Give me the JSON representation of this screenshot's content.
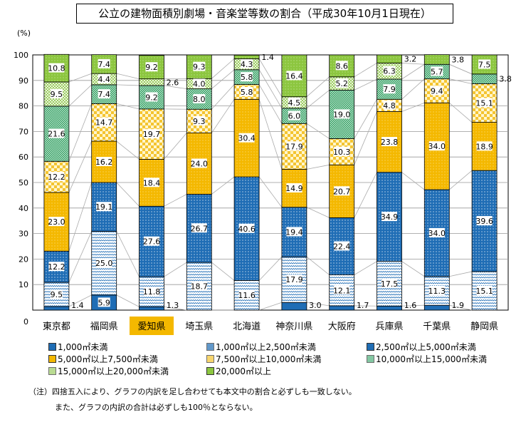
{
  "chart_data": {
    "type": "bar",
    "stacked": true,
    "title": "公立の建物面積別劇場・音楽堂等数の割合（平成30年10月1日現在）",
    "ylabel": "(%)",
    "ylim": [
      0,
      100
    ],
    "yticks": [
      0,
      10,
      20,
      30,
      40,
      50,
      60,
      70,
      80,
      90,
      100
    ],
    "grid": true,
    "legend_position": "bottom",
    "highlighted_category": "愛知県",
    "categories": [
      "東京都",
      "福岡県",
      "愛知県",
      "埼玉県",
      "北海道",
      "神奈川県",
      "大阪府",
      "兵庫県",
      "千葉県",
      "静岡県"
    ],
    "series": [
      {
        "name": "1,000㎡未満",
        "color": "#1f6db5",
        "pattern": "solid",
        "values": [
          1.4,
          5.9,
          1.3,
          0,
          0,
          3.0,
          1.7,
          1.6,
          1.9,
          0
        ]
      },
      {
        "name": "1,000㎡以上2,500㎡未満",
        "color": "#1f6db5",
        "pattern": "wave",
        "values": [
          9.5,
          25.0,
          11.8,
          18.7,
          11.6,
          17.9,
          12.1,
          17.5,
          11.3,
          15.1
        ]
      },
      {
        "name": "2,500㎡以上5,000㎡未満",
        "color": "#1f6db5",
        "pattern": "dots",
        "values": [
          12.2,
          19.1,
          27.6,
          26.7,
          40.6,
          19.4,
          22.4,
          34.9,
          34.0,
          39.6
        ]
      },
      {
        "name": "5,000㎡以上7,500㎡未満",
        "color": "#f4b800",
        "pattern": "dots",
        "values": [
          23.0,
          16.2,
          18.4,
          24.0,
          30.4,
          14.9,
          20.7,
          23.8,
          34.0,
          18.9
        ]
      },
      {
        "name": "7,500㎡以上10,000㎡未満",
        "color": "#f4c430",
        "pattern": "checker",
        "values": [
          12.2,
          14.7,
          19.7,
          9.3,
          5.8,
          17.9,
          10.3,
          4.8,
          9.4,
          15.1
        ]
      },
      {
        "name": "10,000㎡以上15,000㎡未満",
        "color": "#4fb07c",
        "pattern": "checker-fine",
        "values": [
          21.6,
          7.4,
          9.2,
          8.0,
          5.8,
          6.0,
          19.0,
          7.9,
          5.7,
          3.8
        ]
      },
      {
        "name": "15,000㎡以上20,000㎡未満",
        "color": "#9ccc65",
        "pattern": "checker-light",
        "values": [
          9.5,
          4.4,
          2.6,
          4.0,
          4.3,
          4.5,
          5.2,
          6.3,
          0,
          0
        ]
      },
      {
        "name": "20,000㎡以上",
        "color": "#8cc63f",
        "pattern": "dots",
        "values": [
          10.8,
          7.4,
          9.2,
          9.3,
          1.4,
          16.4,
          8.6,
          3.2,
          3.8,
          7.5
        ]
      }
    ]
  },
  "notes": [
    "（注）四捨五入により、グラフの内訳を足し合わせても本文中の割合と必ずしも一致しない。",
    "また、グラフの内訳の合計は必ずしも100％とならない。"
  ]
}
